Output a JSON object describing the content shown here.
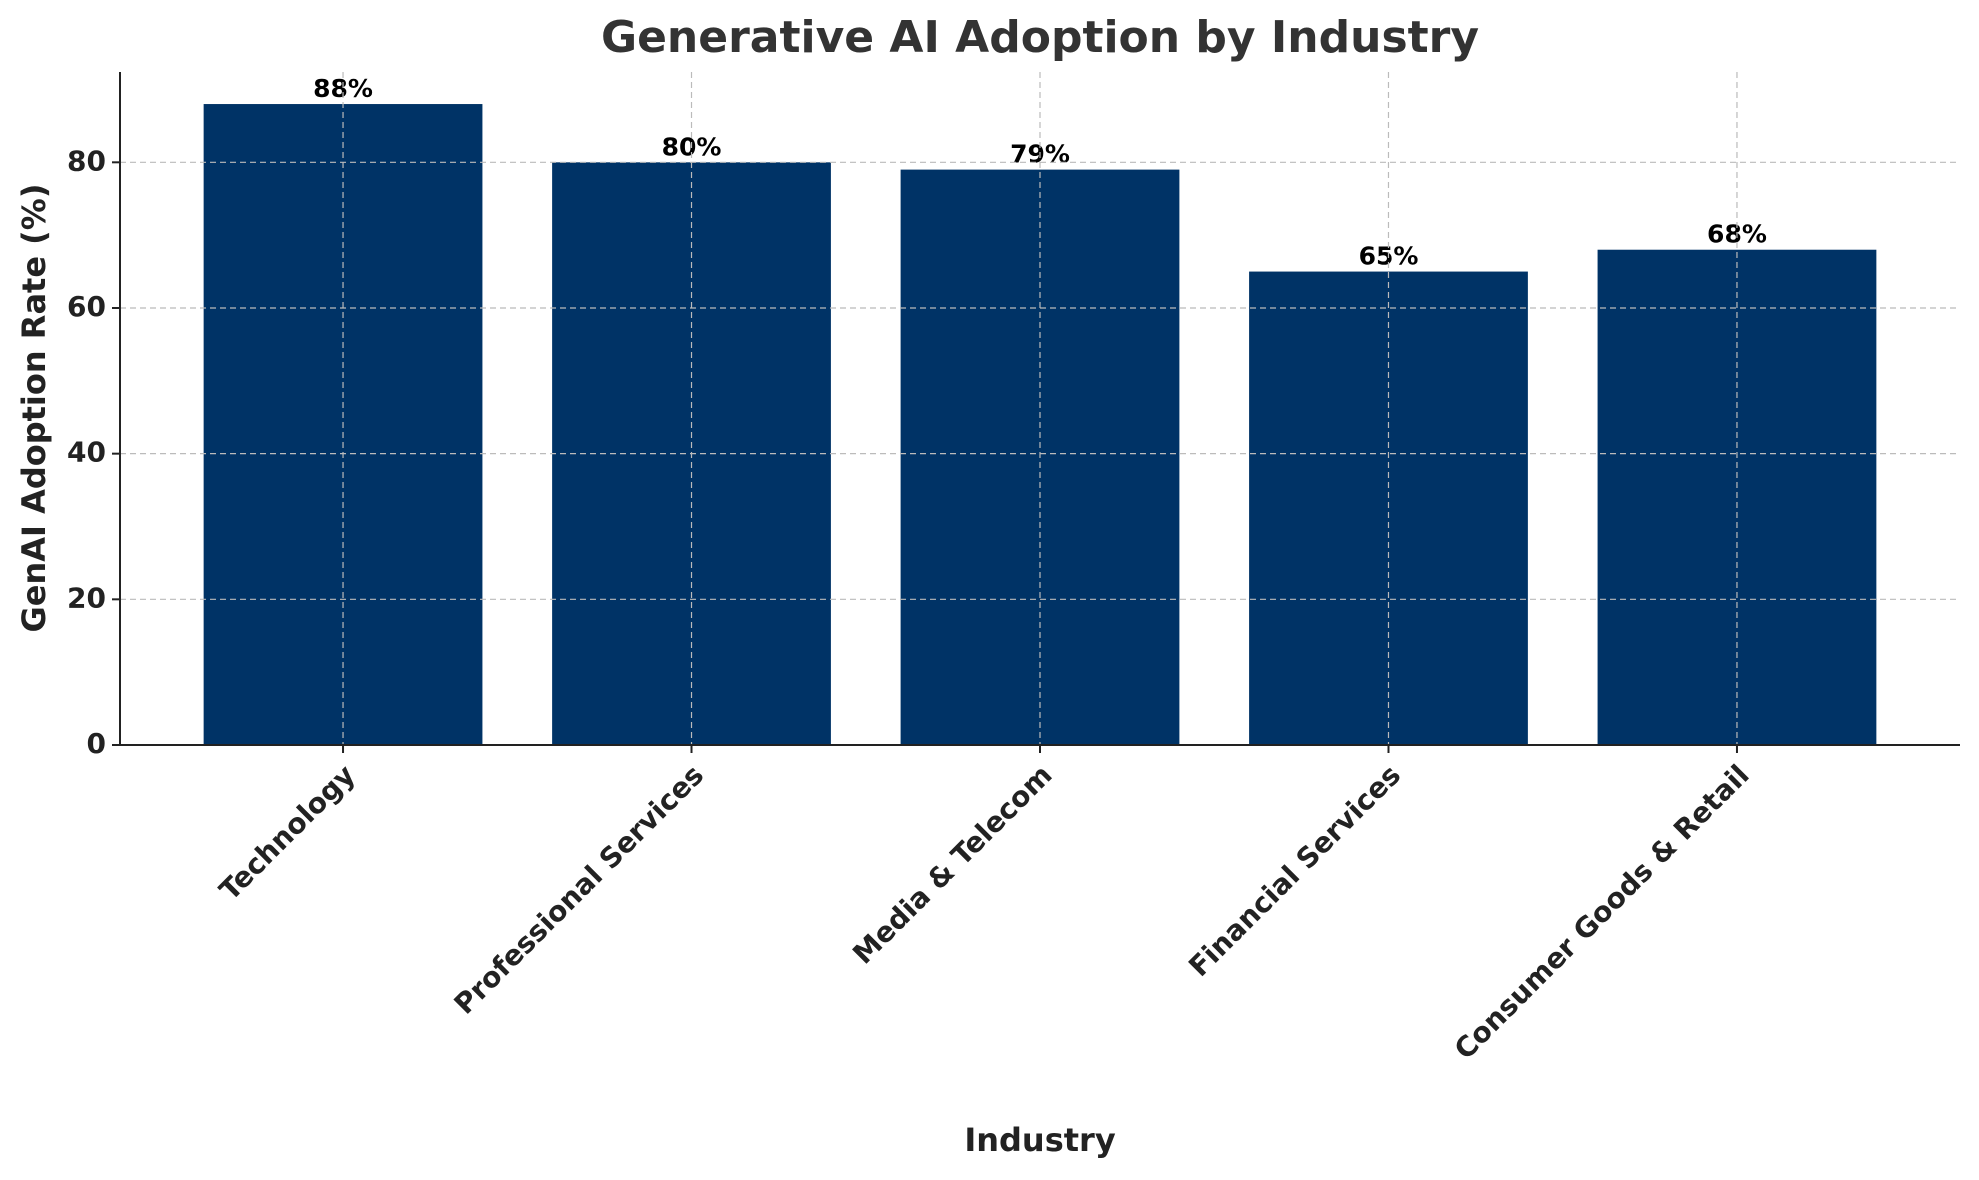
{
  "chart_data": {
    "type": "bar",
    "title": "Generative AI Adoption by Industry",
    "x_label": "Industry",
    "y_label": "GenAI Adoption Rate (%)",
    "categories": [
      "Technology",
      "Professional Services",
      "Media & Telecom",
      "Financial Services",
      "Consumer Goods & Retail"
    ],
    "values": [
      88,
      80,
      79,
      65,
      68
    ],
    "value_labels": [
      "88%",
      "80%",
      "79%",
      "65%",
      "68%"
    ],
    "color": "#003366",
    "ylim": [
      0,
      92.4
    ],
    "yticks": [
      0,
      20,
      40,
      60,
      80
    ],
    "grid": true
  }
}
